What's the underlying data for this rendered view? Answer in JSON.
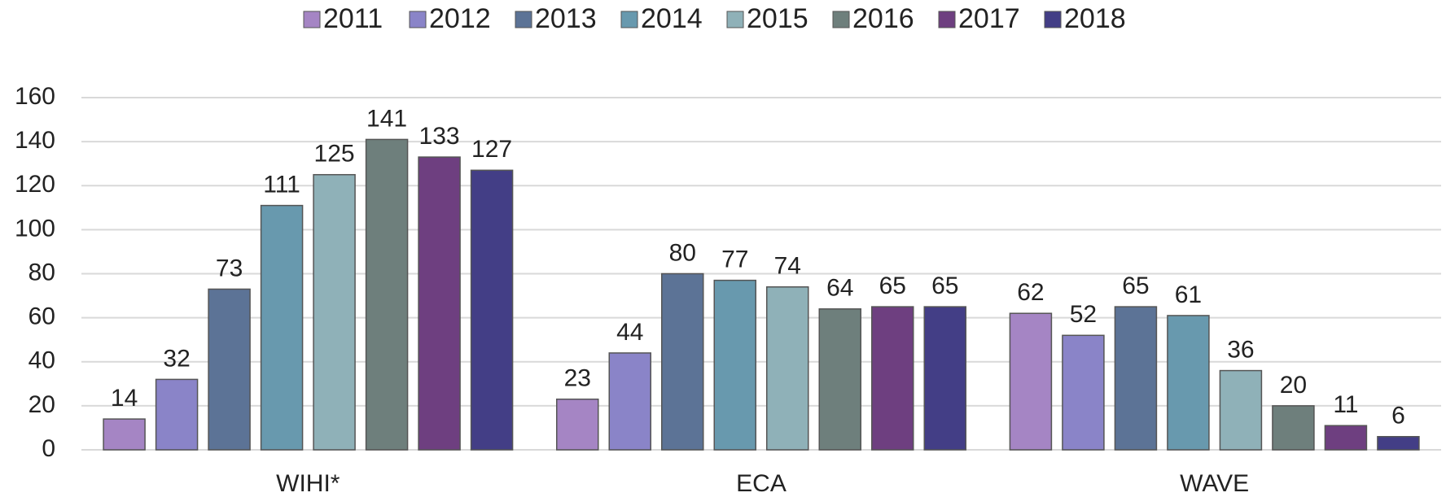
{
  "chart_data": {
    "type": "bar",
    "categories": [
      "WIHI*",
      "ECA",
      "WAVE"
    ],
    "series": [
      {
        "name": "2011",
        "color": "#a585c4",
        "values": [
          14,
          23,
          62
        ]
      },
      {
        "name": "2012",
        "color": "#8a84c8",
        "values": [
          32,
          44,
          52
        ]
      },
      {
        "name": "2013",
        "color": "#5c7396",
        "values": [
          73,
          80,
          65
        ]
      },
      {
        "name": "2014",
        "color": "#6899ae",
        "values": [
          111,
          77,
          61
        ]
      },
      {
        "name": "2015",
        "color": "#8fb1b8",
        "values": [
          125,
          74,
          36
        ]
      },
      {
        "name": "2016",
        "color": "#6e7f7c",
        "values": [
          141,
          64,
          20
        ]
      },
      {
        "name": "2017",
        "color": "#6e3f80",
        "values": [
          133,
          65,
          11
        ]
      },
      {
        "name": "2018",
        "color": "#433e86",
        "values": [
          127,
          65,
          6
        ]
      }
    ],
    "ylim": [
      0,
      160
    ],
    "yticks": [
      0,
      20,
      40,
      60,
      80,
      100,
      120,
      140,
      160
    ],
    "grid": true,
    "legend": "top"
  }
}
